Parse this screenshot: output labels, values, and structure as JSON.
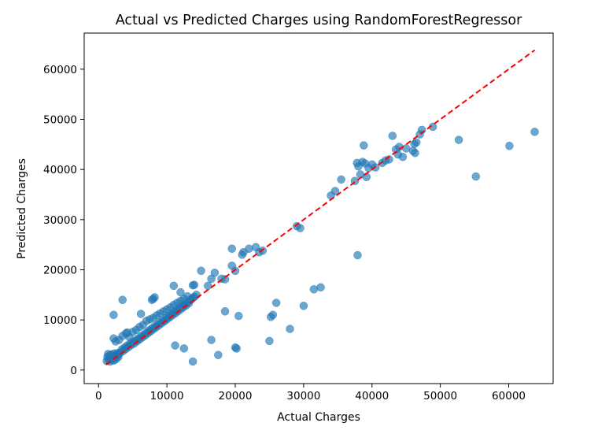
{
  "chart_data": {
    "type": "scatter",
    "title": "Actual vs Predicted Charges using RandomForestRegressor",
    "xlabel": "Actual Charges",
    "ylabel": "Predicted Charges",
    "xlim": [
      -2100,
      66500
    ],
    "ylim": [
      -2700,
      67200
    ],
    "xticks": [
      0,
      10000,
      20000,
      30000,
      40000,
      50000,
      60000
    ],
    "xtick_labels": [
      "0",
      "10000",
      "20000",
      "30000",
      "40000",
      "50000",
      "60000"
    ],
    "yticks": [
      0,
      10000,
      20000,
      30000,
      40000,
      50000,
      60000
    ],
    "ytick_labels": [
      "0",
      "10000",
      "20000",
      "30000",
      "40000",
      "50000",
      "60000"
    ],
    "grid": false,
    "colors": {
      "points": "#1f77b4",
      "reference_line": "#ff0000"
    },
    "reference_line": {
      "style": "dashed",
      "x": [
        1100,
        63800
      ],
      "y": [
        1100,
        63800
      ]
    },
    "series": [
      {
        "points": [
          [
            1200,
            1800
          ],
          [
            1300,
            2600
          ],
          [
            1400,
            3200
          ],
          [
            1500,
            2000
          ],
          [
            1600,
            2900
          ],
          [
            1700,
            1700
          ],
          [
            1800,
            2400
          ],
          [
            1900,
            3100
          ],
          [
            2000,
            2200
          ],
          [
            2100,
            2700
          ],
          [
            2200,
            1900
          ],
          [
            2300,
            3300
          ],
          [
            2400,
            2500
          ],
          [
            2500,
            2100
          ],
          [
            2600,
            3000
          ],
          [
            2700,
            2800
          ],
          [
            2800,
            3400
          ],
          [
            2900,
            2600
          ],
          [
            3000,
            3200
          ],
          [
            3200,
            3500
          ],
          [
            3400,
            4100
          ],
          [
            3600,
            3800
          ],
          [
            3800,
            4500
          ],
          [
            4000,
            4200
          ],
          [
            4200,
            4900
          ],
          [
            4400,
            4600
          ],
          [
            4600,
            5200
          ],
          [
            4800,
            5000
          ],
          [
            5000,
            5600
          ],
          [
            5200,
            5300
          ],
          [
            5400,
            5900
          ],
          [
            5600,
            5700
          ],
          [
            5800,
            6300
          ],
          [
            6000,
            6100
          ],
          [
            6200,
            6700
          ],
          [
            6400,
            6500
          ],
          [
            6600,
            7100
          ],
          [
            6800,
            6900
          ],
          [
            7000,
            7500
          ],
          [
            7200,
            7300
          ],
          [
            7400,
            7900
          ],
          [
            7600,
            7700
          ],
          [
            7800,
            8300
          ],
          [
            8000,
            8100
          ],
          [
            8200,
            8700
          ],
          [
            8400,
            8500
          ],
          [
            8600,
            9100
          ],
          [
            8800,
            8900
          ],
          [
            9000,
            9500
          ],
          [
            9200,
            9300
          ],
          [
            9400,
            9900
          ],
          [
            9600,
            9700
          ],
          [
            9800,
            10300
          ],
          [
            10000,
            10100
          ],
          [
            10200,
            10700
          ],
          [
            10400,
            10500
          ],
          [
            10600,
            11100
          ],
          [
            10800,
            10900
          ],
          [
            11000,
            11500
          ],
          [
            11200,
            11300
          ],
          [
            11400,
            11900
          ],
          [
            11600,
            11700
          ],
          [
            11800,
            12300
          ],
          [
            12000,
            12100
          ],
          [
            12200,
            12700
          ],
          [
            12400,
            12500
          ],
          [
            12600,
            13100
          ],
          [
            12800,
            12900
          ],
          [
            13000,
            13500
          ],
          [
            13200,
            13300
          ],
          [
            13400,
            13900
          ],
          [
            13600,
            14100
          ],
          [
            13800,
            14400
          ],
          [
            14000,
            14600
          ],
          [
            14300,
            15000
          ],
          [
            2200,
            6300
          ],
          [
            2500,
            5700
          ],
          [
            3000,
            6000
          ],
          [
            3500,
            6800
          ],
          [
            4000,
            7300
          ],
          [
            4500,
            6600
          ],
          [
            5000,
            7600
          ],
          [
            5500,
            8000
          ],
          [
            6000,
            8600
          ],
          [
            6500,
            9000
          ],
          [
            7000,
            9800
          ],
          [
            7500,
            10100
          ],
          [
            8000,
            10400
          ],
          [
            8500,
            10900
          ],
          [
            9000,
            11300
          ],
          [
            9500,
            11700
          ],
          [
            10000,
            12100
          ],
          [
            10500,
            12500
          ],
          [
            11000,
            13000
          ],
          [
            11500,
            13400
          ],
          [
            12000,
            13800
          ],
          [
            12500,
            14200
          ],
          [
            13000,
            14700
          ],
          [
            4200,
            7500
          ],
          [
            6200,
            11200
          ],
          [
            7800,
            14000
          ],
          [
            8200,
            14500
          ],
          [
            11000,
            16800
          ],
          [
            12000,
            15500
          ],
          [
            13800,
            16900
          ],
          [
            14000,
            17000
          ],
          [
            15000,
            19800
          ],
          [
            16000,
            16800
          ],
          [
            16500,
            18200
          ],
          [
            17000,
            19400
          ],
          [
            18000,
            18200
          ],
          [
            18500,
            18100
          ],
          [
            19500,
            24200
          ],
          [
            19500,
            20800
          ],
          [
            20000,
            19800
          ],
          [
            21000,
            23000
          ],
          [
            21200,
            23500
          ],
          [
            22000,
            24200
          ],
          [
            23000,
            24500
          ],
          [
            23500,
            23500
          ],
          [
            24000,
            23800
          ],
          [
            2200,
            11000
          ],
          [
            3500,
            14000
          ],
          [
            8000,
            14200
          ],
          [
            11200,
            4900
          ],
          [
            12500,
            4300
          ],
          [
            13800,
            1700
          ],
          [
            16500,
            6000
          ],
          [
            17500,
            3000
          ],
          [
            18500,
            11700
          ],
          [
            20000,
            4500
          ],
          [
            20200,
            4300
          ],
          [
            20500,
            10800
          ],
          [
            25000,
            5800
          ],
          [
            25200,
            10600
          ],
          [
            25500,
            11000
          ],
          [
            26000,
            13400
          ],
          [
            28000,
            8200
          ],
          [
            29000,
            28700
          ],
          [
            29500,
            28300
          ],
          [
            30000,
            12800
          ],
          [
            31500,
            16100
          ],
          [
            32500,
            16500
          ],
          [
            34000,
            34800
          ],
          [
            34600,
            35700
          ],
          [
            35500,
            38000
          ],
          [
            37500,
            37700
          ],
          [
            37800,
            41300
          ],
          [
            37900,
            22900
          ],
          [
            38000,
            40600
          ],
          [
            38300,
            39000
          ],
          [
            38600,
            41500
          ],
          [
            38800,
            44800
          ],
          [
            39000,
            41200
          ],
          [
            39200,
            38500
          ],
          [
            39500,
            40300
          ],
          [
            40000,
            41000
          ],
          [
            40500,
            40400
          ],
          [
            41500,
            41300
          ],
          [
            42000,
            41800
          ],
          [
            42500,
            42000
          ],
          [
            43000,
            46700
          ],
          [
            43500,
            44000
          ],
          [
            43800,
            43000
          ],
          [
            44000,
            44500
          ],
          [
            44500,
            42500
          ],
          [
            45000,
            44200
          ],
          [
            46000,
            43700
          ],
          [
            46200,
            45100
          ],
          [
            46300,
            43300
          ],
          [
            46500,
            45400
          ],
          [
            47000,
            47000
          ],
          [
            47300,
            47900
          ],
          [
            48900,
            48500
          ],
          [
            52700,
            45900
          ],
          [
            55200,
            38600
          ],
          [
            60100,
            44700
          ],
          [
            63800,
            47500
          ]
        ]
      }
    ]
  }
}
